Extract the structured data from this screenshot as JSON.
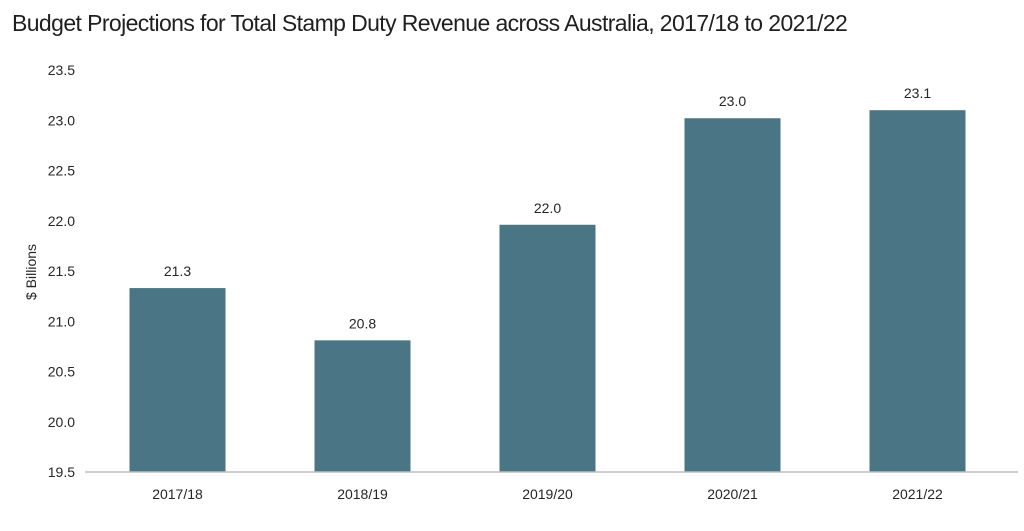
{
  "chart_data": {
    "type": "bar",
    "title": "Budget Projections for Total Stamp Duty Revenue across Australia, 2017/18 to 2021/22",
    "xlabel": "",
    "ylabel": "$ Billions",
    "categories": [
      "2017/18",
      "2018/19",
      "2019/20",
      "2020/21",
      "2021/22"
    ],
    "values": [
      21.33,
      20.81,
      21.96,
      23.02,
      23.1
    ],
    "data_labels": [
      "21.3",
      "20.8",
      "22.0",
      "23.0",
      "23.1"
    ],
    "ylim": [
      19.5,
      23.5
    ],
    "yticks": [
      19.5,
      20.0,
      20.5,
      21.0,
      21.5,
      22.0,
      22.5,
      23.0,
      23.5
    ],
    "ytick_labels": [
      "19.5",
      "20.0",
      "20.5",
      "21.0",
      "21.5",
      "22.0",
      "22.5",
      "23.0",
      "23.5"
    ],
    "grid": false,
    "legend": "none",
    "bar_color": "#4a7584",
    "axis_color": "#bfbfbf"
  }
}
